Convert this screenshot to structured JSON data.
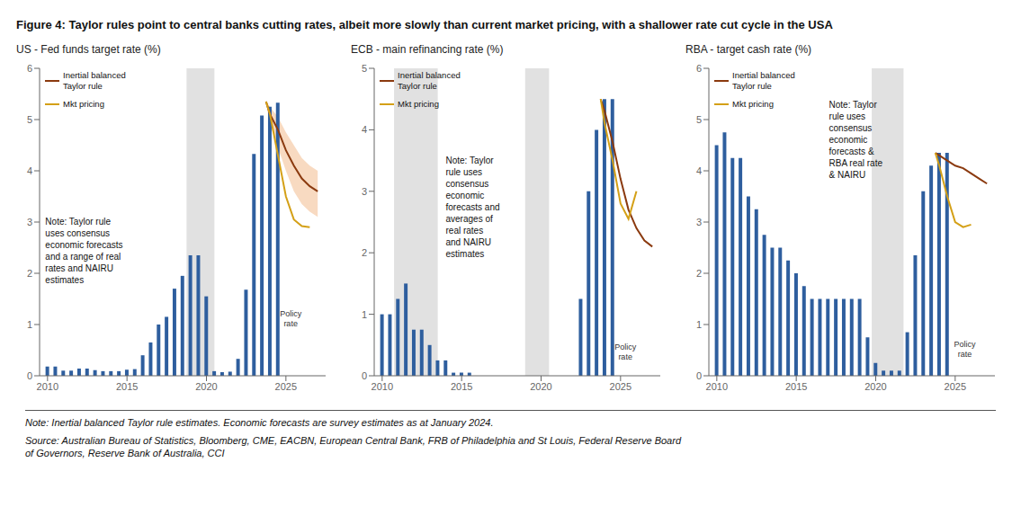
{
  "title": "Figure 4: Taylor rules point to central banks cutting rates, albeit more slowly than current market pricing, with a shallower rate cut cycle in the USA",
  "annotations": [
    "Note: Inertial balanced Taylor rule estimates.  Economic forecasts are survey estimates as at January 2024.",
    "Source: Australian Bureau of Statistics, Bloomberg, CME, EACBN, European Central Bank, FRB of Philadelphia and St Louis, Federal Reserve Board\nof Governors, Reserve Bank of Australia, CCI"
  ],
  "chart_data": [
    {
      "type": "bar",
      "title": "US - Fed funds target rate (%)",
      "xlim": [
        2009.5,
        2027.5
      ],
      "xticks": [
        2010,
        2015,
        2020,
        2025
      ],
      "ylim": [
        0,
        6
      ],
      "yticks": [
        0,
        1,
        2,
        3,
        4,
        5,
        6
      ],
      "grid": false,
      "legend": "upper left",
      "bands": [
        {
          "x": [
            2018.75,
            2020.5
          ],
          "color": "#C8C8C8"
        }
      ],
      "series": [
        {
          "type": "bar",
          "color": "#2E5E9E",
          "x": [
            2010,
            2010.5,
            2011,
            2011.5,
            2012,
            2012.5,
            2013,
            2013.5,
            2014,
            2014.5,
            2015,
            2015.5,
            2016,
            2016.5,
            2017,
            2017.5,
            2018,
            2018.5,
            2019,
            2019.5,
            2020,
            2020.5,
            2021,
            2021.5,
            2022,
            2022.5,
            2023,
            2023.5,
            2024,
            2024.5
          ],
          "values": [
            0.18,
            0.18,
            0.1,
            0.1,
            0.14,
            0.14,
            0.11,
            0.09,
            0.09,
            0.09,
            0.12,
            0.13,
            0.4,
            0.65,
            1.0,
            1.15,
            1.7,
            1.95,
            2.35,
            2.35,
            1.55,
            0.09,
            0.07,
            0.08,
            0.33,
            1.68,
            4.33,
            5.08,
            5.25,
            5.33
          ]
        },
        {
          "type": "area",
          "color": "#F4C6A0",
          "x": [
            2023.75,
            2024.0,
            2024.5,
            2025.0,
            2025.5,
            2026.0,
            2026.5,
            2027.0
          ],
          "lower": [
            5.35,
            4.9,
            4.45,
            4.0,
            3.6,
            3.35,
            3.2,
            3.1
          ],
          "upper": [
            5.35,
            5.25,
            5.05,
            4.75,
            4.5,
            4.25,
            4.1,
            4.0
          ]
        },
        {
          "name": "Inertial balanced\nTaylor rule",
          "type": "line",
          "color": "#8B3A0F",
          "x": [
            2023.75,
            2024.0,
            2024.5,
            2025.0,
            2025.5,
            2026.0,
            2026.5,
            2027.0
          ],
          "values": [
            5.35,
            5.1,
            4.8,
            4.4,
            4.1,
            3.85,
            3.7,
            3.6
          ]
        },
        {
          "name": "Mkt pricing",
          "type": "line",
          "color": "#D4A017",
          "x": [
            2023.75,
            2024.0,
            2024.5,
            2025.0,
            2025.5,
            2026.0,
            2026.5
          ],
          "values": [
            5.35,
            5.1,
            4.3,
            3.5,
            3.05,
            2.92,
            2.9
          ]
        }
      ],
      "annotations": [
        {
          "text": "Note: Taylor rule\nuses consensus\neconomic forecasts\nand a range of real\nrates and NAIRU\nestimates"
        },
        {
          "text": "Policy\nrate",
          "x": 2025.3,
          "y": 1.1
        }
      ]
    },
    {
      "type": "bar",
      "title": "ECB - main refinancing rate (%)",
      "xlim": [
        2009.5,
        2027.5
      ],
      "xticks": [
        2010,
        2015,
        2020,
        2025
      ],
      "ylim": [
        0,
        5
      ],
      "yticks": [
        0,
        1,
        2,
        3,
        4,
        5
      ],
      "grid": false,
      "legend": "upper left",
      "bands": [
        {
          "x": [
            2010.75,
            2013.5
          ],
          "color": "#C8C8C8"
        },
        {
          "x": [
            2019.0,
            2020.5
          ],
          "color": "#C8C8C8"
        }
      ],
      "series": [
        {
          "type": "bar",
          "color": "#2E5E9E",
          "x": [
            2010,
            2010.5,
            2011,
            2011.5,
            2012,
            2012.5,
            2013,
            2013.5,
            2014,
            2014.5,
            2015,
            2015.5,
            2016,
            2016.5,
            2017,
            2017.5,
            2018,
            2018.5,
            2019,
            2019.5,
            2020,
            2020.5,
            2021,
            2021.5,
            2022,
            2022.5,
            2023,
            2023.5,
            2024,
            2024.5
          ],
          "values": [
            1.0,
            1.0,
            1.25,
            1.5,
            0.75,
            0.75,
            0.5,
            0.25,
            0.25,
            0.05,
            0.05,
            0.05,
            0.0,
            0.0,
            0.0,
            0.0,
            0.0,
            0.0,
            0.0,
            0.0,
            0.0,
            0.0,
            0.0,
            0.0,
            0.0,
            1.25,
            3.0,
            4.0,
            4.5,
            4.5
          ]
        },
        {
          "name": "Inertial balanced\nTaylor rule",
          "type": "line",
          "color": "#8B3A0F",
          "x": [
            2023.75,
            2024.0,
            2024.5,
            2025.0,
            2025.5,
            2026.0,
            2026.5,
            2027.0
          ],
          "values": [
            4.5,
            4.3,
            3.8,
            3.2,
            2.7,
            2.4,
            2.2,
            2.1
          ]
        },
        {
          "name": "Mkt pricing",
          "type": "line",
          "color": "#D4A017",
          "x": [
            2023.75,
            2024.0,
            2024.5,
            2025.0,
            2025.5,
            2026.0
          ],
          "values": [
            4.5,
            4.1,
            3.5,
            2.8,
            2.55,
            3.0
          ]
        }
      ],
      "annotations": [
        {
          "text": "Note: Taylor\nrule uses\nconsensus\neconomic\nforecasts and\naverages of\nreal rates\nand NAIRU\nestimates"
        },
        {
          "text": "Policy\nrate",
          "x": 2025.3,
          "y": 0.38
        }
      ]
    },
    {
      "type": "bar",
      "title": "RBA - target cash rate (%)",
      "xlim": [
        2009.5,
        2027.5
      ],
      "xticks": [
        2010,
        2015,
        2020,
        2025
      ],
      "ylim": [
        0,
        6
      ],
      "yticks": [
        0,
        1,
        2,
        3,
        4,
        5,
        6
      ],
      "grid": false,
      "legend": "upper left",
      "bands": [
        {
          "x": [
            2019.75,
            2021.75
          ],
          "color": "#C8C8C8"
        }
      ],
      "series": [
        {
          "type": "bar",
          "color": "#2E5E9E",
          "x": [
            2010,
            2010.5,
            2011,
            2011.5,
            2012,
            2012.5,
            2013,
            2013.5,
            2014,
            2014.5,
            2015,
            2015.5,
            2016,
            2016.5,
            2017,
            2017.5,
            2018,
            2018.5,
            2019,
            2019.5,
            2020,
            2020.5,
            2021,
            2021.5,
            2022,
            2022.5,
            2023,
            2023.5,
            2024,
            2024.5
          ],
          "values": [
            4.5,
            4.75,
            4.25,
            4.25,
            3.5,
            3.25,
            2.75,
            2.5,
            2.5,
            2.25,
            2.0,
            1.75,
            1.5,
            1.5,
            1.5,
            1.5,
            1.5,
            1.5,
            1.5,
            0.75,
            0.25,
            0.1,
            0.1,
            0.1,
            0.85,
            2.35,
            3.6,
            4.1,
            4.35,
            4.35
          ]
        },
        {
          "name": "Inertial balanced\nTaylor rule",
          "type": "line",
          "color": "#8B3A0F",
          "x": [
            2023.75,
            2024.0,
            2024.5,
            2025.0,
            2025.5,
            2026.0,
            2026.5,
            2027.0
          ],
          "values": [
            4.35,
            4.3,
            4.2,
            4.1,
            4.05,
            3.95,
            3.85,
            3.75
          ]
        },
        {
          "name": "Mkt pricing",
          "type": "line",
          "color": "#D4A017",
          "x": [
            2023.75,
            2024.0,
            2024.5,
            2025.0,
            2025.5,
            2026.0
          ],
          "values": [
            4.35,
            4.1,
            3.5,
            3.0,
            2.9,
            2.95
          ]
        }
      ],
      "annotations": [
        {
          "text": "Note: Taylor\nrule uses\nconsensus\neconomic\nforecasts &\nRBA real rate\n& NAIRU"
        },
        {
          "text": "Policy\nrate",
          "x": 2025.6,
          "y": 0.5
        }
      ]
    }
  ]
}
